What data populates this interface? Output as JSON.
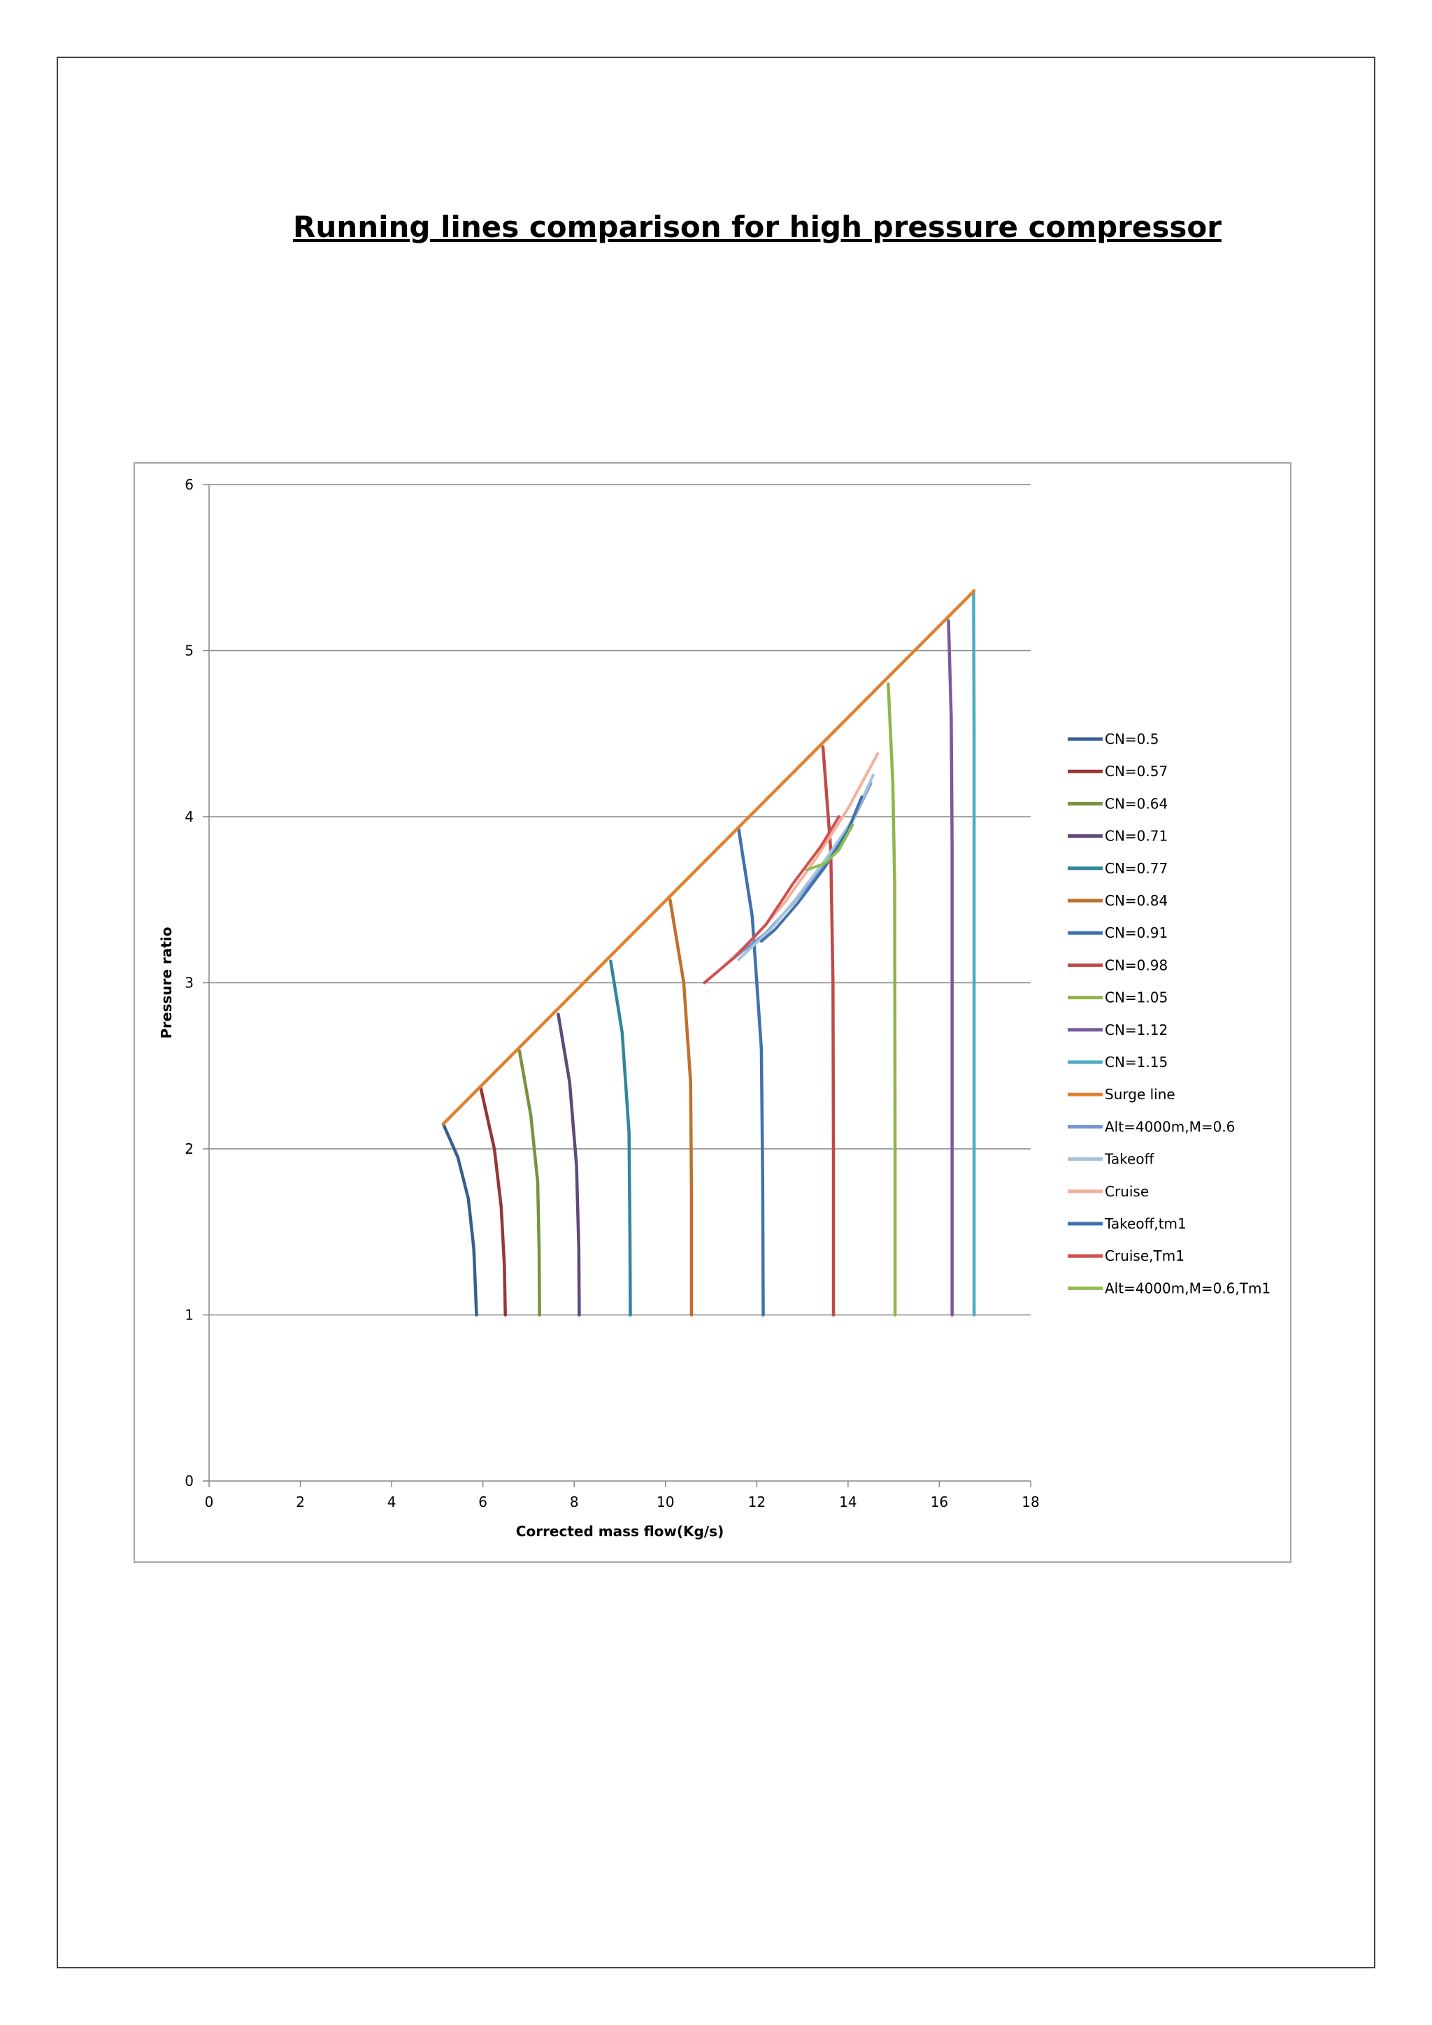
{
  "page": {
    "title": "Running lines comparison for high pressure compressor"
  },
  "chart_data": {
    "type": "line",
    "title": "",
    "xlabel": "Corrected mass flow(Kg/s)",
    "ylabel": "Pressure ratio",
    "xlim": [
      0,
      18
    ],
    "ylim": [
      0,
      6
    ],
    "xticks": [
      0,
      2,
      4,
      6,
      8,
      10,
      12,
      14,
      16,
      18
    ],
    "yticks": [
      0,
      1,
      2,
      3,
      4,
      5,
      6
    ],
    "grid": "horizontal",
    "legend_position": "right",
    "series": [
      {
        "name": "CN=0.5",
        "color": "#3a5e8c",
        "points": [
          [
            5.13,
            2.15
          ],
          [
            5.45,
            1.95
          ],
          [
            5.68,
            1.7
          ],
          [
            5.8,
            1.4
          ],
          [
            5.86,
            1.0
          ]
        ]
      },
      {
        "name": "CN=0.57",
        "color": "#953735",
        "points": [
          [
            5.95,
            2.37
          ],
          [
            6.25,
            2.0
          ],
          [
            6.4,
            1.65
          ],
          [
            6.47,
            1.3
          ],
          [
            6.49,
            1.0
          ]
        ]
      },
      {
        "name": "CN=0.64",
        "color": "#77933c",
        "points": [
          [
            6.8,
            2.59
          ],
          [
            7.05,
            2.2
          ],
          [
            7.2,
            1.8
          ],
          [
            7.23,
            1.4
          ],
          [
            7.24,
            1.0
          ]
        ]
      },
      {
        "name": "CN=0.71",
        "color": "#5f497a",
        "points": [
          [
            7.65,
            2.81
          ],
          [
            7.9,
            2.4
          ],
          [
            8.05,
            1.9
          ],
          [
            8.1,
            1.4
          ],
          [
            8.11,
            1.0
          ]
        ]
      },
      {
        "name": "CN=0.77",
        "color": "#31859c",
        "points": [
          [
            8.8,
            3.13
          ],
          [
            9.05,
            2.7
          ],
          [
            9.2,
            2.1
          ],
          [
            9.22,
            1.5
          ],
          [
            9.23,
            1.0
          ]
        ]
      },
      {
        "name": "CN=0.84",
        "color": "#c0702c",
        "points": [
          [
            10.1,
            3.5
          ],
          [
            10.4,
            3.0
          ],
          [
            10.55,
            2.4
          ],
          [
            10.57,
            1.7
          ],
          [
            10.57,
            1.0
          ]
        ]
      },
      {
        "name": "CN=0.91",
        "color": "#4071ad",
        "points": [
          [
            11.6,
            3.93
          ],
          [
            11.9,
            3.4
          ],
          [
            12.1,
            2.6
          ],
          [
            12.13,
            1.8
          ],
          [
            12.14,
            1.0
          ]
        ]
      },
      {
        "name": "CN=0.98",
        "color": "#be4b48",
        "points": [
          [
            13.45,
            4.42
          ],
          [
            13.62,
            3.8
          ],
          [
            13.67,
            3.0
          ],
          [
            13.68,
            2.0
          ],
          [
            13.68,
            1.0
          ]
        ]
      },
      {
        "name": "CN=1.05",
        "color": "#8fb54b",
        "points": [
          [
            14.88,
            4.8
          ],
          [
            14.98,
            4.2
          ],
          [
            15.02,
            3.6
          ],
          [
            15.03,
            2.0
          ],
          [
            15.03,
            1.0
          ]
        ]
      },
      {
        "name": "CN=1.12",
        "color": "#7a5a9c",
        "points": [
          [
            16.2,
            5.18
          ],
          [
            16.26,
            4.6
          ],
          [
            16.28,
            3.8
          ],
          [
            16.28,
            2.0
          ],
          [
            16.28,
            1.0
          ]
        ]
      },
      {
        "name": "CN=1.15",
        "color": "#4aacc5",
        "points": [
          [
            16.75,
            5.36
          ],
          [
            16.76,
            4.5
          ],
          [
            16.76,
            3.0
          ],
          [
            16.76,
            1.0
          ]
        ]
      },
      {
        "name": "Surge line",
        "color": "#e0812e",
        "points": [
          [
            5.13,
            2.15
          ],
          [
            16.76,
            5.36
          ]
        ]
      },
      {
        "name": "Alt=4000m,M=0.6",
        "color": "#7396cf",
        "points": [
          [
            11.5,
            3.15
          ],
          [
            12.2,
            3.3
          ],
          [
            12.8,
            3.48
          ],
          [
            13.4,
            3.68
          ],
          [
            14.0,
            3.92
          ],
          [
            14.5,
            4.2
          ]
        ]
      },
      {
        "name": "Takeoff",
        "color": "#a5c4d9",
        "points": [
          [
            11.6,
            3.14
          ],
          [
            12.3,
            3.32
          ],
          [
            12.9,
            3.52
          ],
          [
            13.5,
            3.74
          ],
          [
            14.1,
            3.98
          ],
          [
            14.55,
            4.25
          ]
        ]
      },
      {
        "name": "Cruise",
        "color": "#f4b09a",
        "points": [
          [
            11.2,
            3.08
          ],
          [
            11.9,
            3.26
          ],
          [
            12.6,
            3.48
          ],
          [
            13.3,
            3.75
          ],
          [
            14.0,
            4.05
          ],
          [
            14.65,
            4.38
          ]
        ]
      },
      {
        "name": "Takeoff,tm1",
        "color": "#4071ad",
        "points": [
          [
            12.1,
            3.25
          ],
          [
            12.4,
            3.32
          ],
          [
            12.9,
            3.48
          ],
          [
            13.5,
            3.7
          ],
          [
            14.0,
            3.92
          ],
          [
            14.3,
            4.12
          ]
        ]
      },
      {
        "name": "Cruise,Tm1",
        "color": "#d05050",
        "points": [
          [
            10.85,
            3.0
          ],
          [
            11.5,
            3.15
          ],
          [
            12.2,
            3.35
          ],
          [
            12.8,
            3.6
          ],
          [
            13.4,
            3.82
          ],
          [
            13.8,
            4.0
          ]
        ]
      },
      {
        "name": "Alt=4000m,M=0.6,Tm1",
        "color": "#8cc04e",
        "points": [
          [
            13.1,
            3.68
          ],
          [
            13.5,
            3.72
          ],
          [
            13.8,
            3.8
          ],
          [
            14.1,
            3.95
          ]
        ]
      }
    ]
  }
}
